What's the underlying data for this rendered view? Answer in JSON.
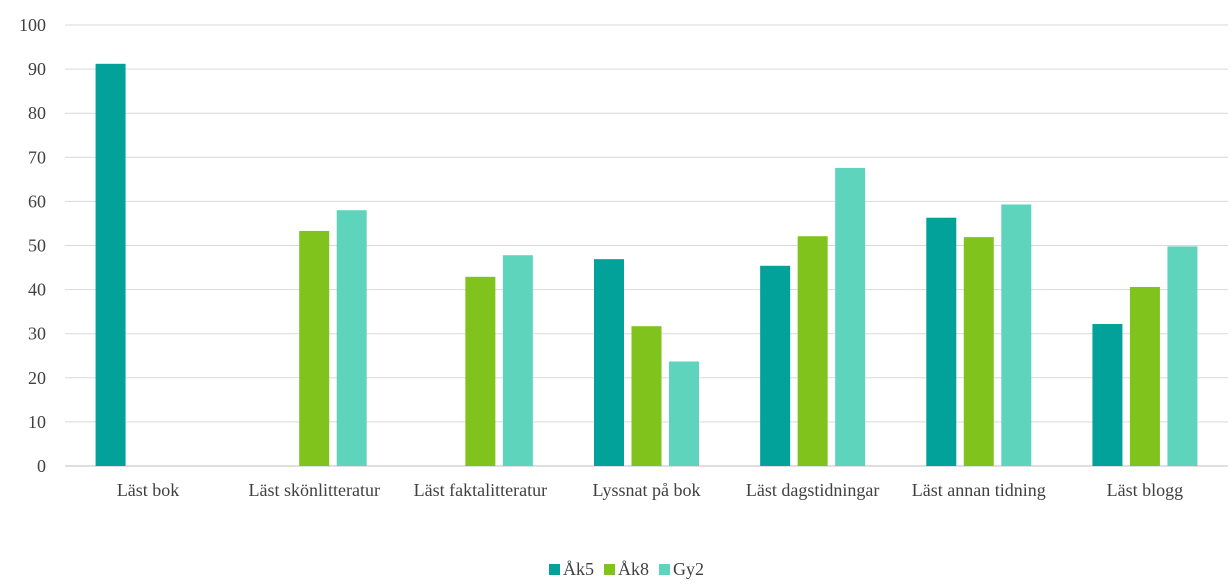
{
  "chart_data": {
    "type": "bar",
    "categories": [
      "Läst bok",
      "Läst skönlitteratur",
      "Läst faktalitteratur",
      "Lyssnat på bok",
      "Läst dagstidningar",
      "Läst annan tidning",
      "Läst blogg"
    ],
    "series": [
      {
        "name": "Åk5",
        "color": "#02a29a",
        "values": [
          91.2,
          null,
          null,
          46.9,
          45.4,
          56.3,
          32.2
        ]
      },
      {
        "name": "Åk8",
        "color": "#80c31c",
        "values": [
          null,
          53.3,
          42.9,
          31.7,
          52.1,
          51.9,
          40.6
        ]
      },
      {
        "name": "Gy2",
        "color": "#5fd4bd",
        "values": [
          null,
          58,
          47.8,
          23.7,
          67.6,
          59.3,
          49.8
        ]
      }
    ],
    "ylim": [
      0,
      100
    ],
    "yticks": [
      0,
      10,
      20,
      30,
      40,
      50,
      60,
      70,
      80,
      90,
      100
    ],
    "grid": true,
    "legend": "bottom"
  }
}
